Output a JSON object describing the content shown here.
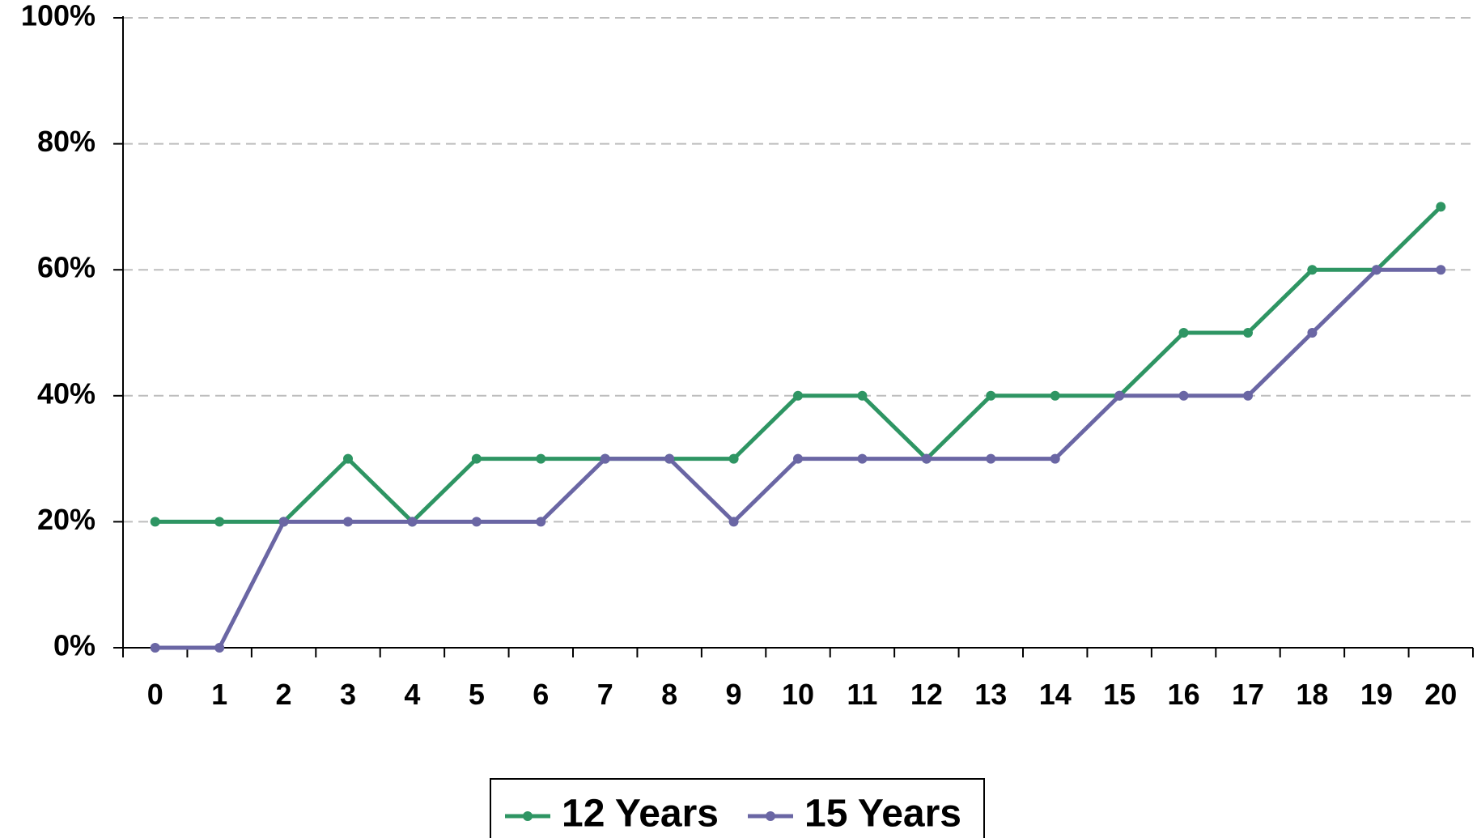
{
  "chart_data": {
    "type": "line",
    "title": "",
    "xlabel": "",
    "ylabel": "",
    "x": [
      0,
      1,
      2,
      3,
      4,
      5,
      6,
      7,
      8,
      9,
      10,
      11,
      12,
      13,
      14,
      15,
      16,
      17,
      18,
      19,
      20
    ],
    "x_tick_labels": [
      "0",
      "1",
      "2",
      "3",
      "4",
      "5",
      "6",
      "7",
      "8",
      "9",
      "10",
      "11",
      "12",
      "13",
      "14",
      "15",
      "16",
      "17",
      "18",
      "19",
      "20"
    ],
    "ylim": [
      0,
      100
    ],
    "y_ticks": [
      0,
      20,
      40,
      60,
      80,
      100
    ],
    "y_tick_labels": [
      "0%",
      "20%",
      "40%",
      "60%",
      "80%",
      "100%"
    ],
    "y_unit": "%",
    "grid": "horizontal dashed",
    "legend_position": "bottom-center",
    "series": [
      {
        "name": "12 Years",
        "color": "#2e9563",
        "values": [
          20,
          20,
          20,
          30,
          20,
          30,
          30,
          30,
          30,
          30,
          40,
          40,
          30,
          40,
          40,
          40,
          50,
          50,
          60,
          60,
          70
        ]
      },
      {
        "name": "15 Years",
        "color": "#6a66a4",
        "values": [
          0,
          0,
          20,
          20,
          20,
          20,
          20,
          30,
          30,
          20,
          30,
          30,
          30,
          30,
          30,
          40,
          40,
          40,
          50,
          60,
          60
        ]
      }
    ]
  }
}
